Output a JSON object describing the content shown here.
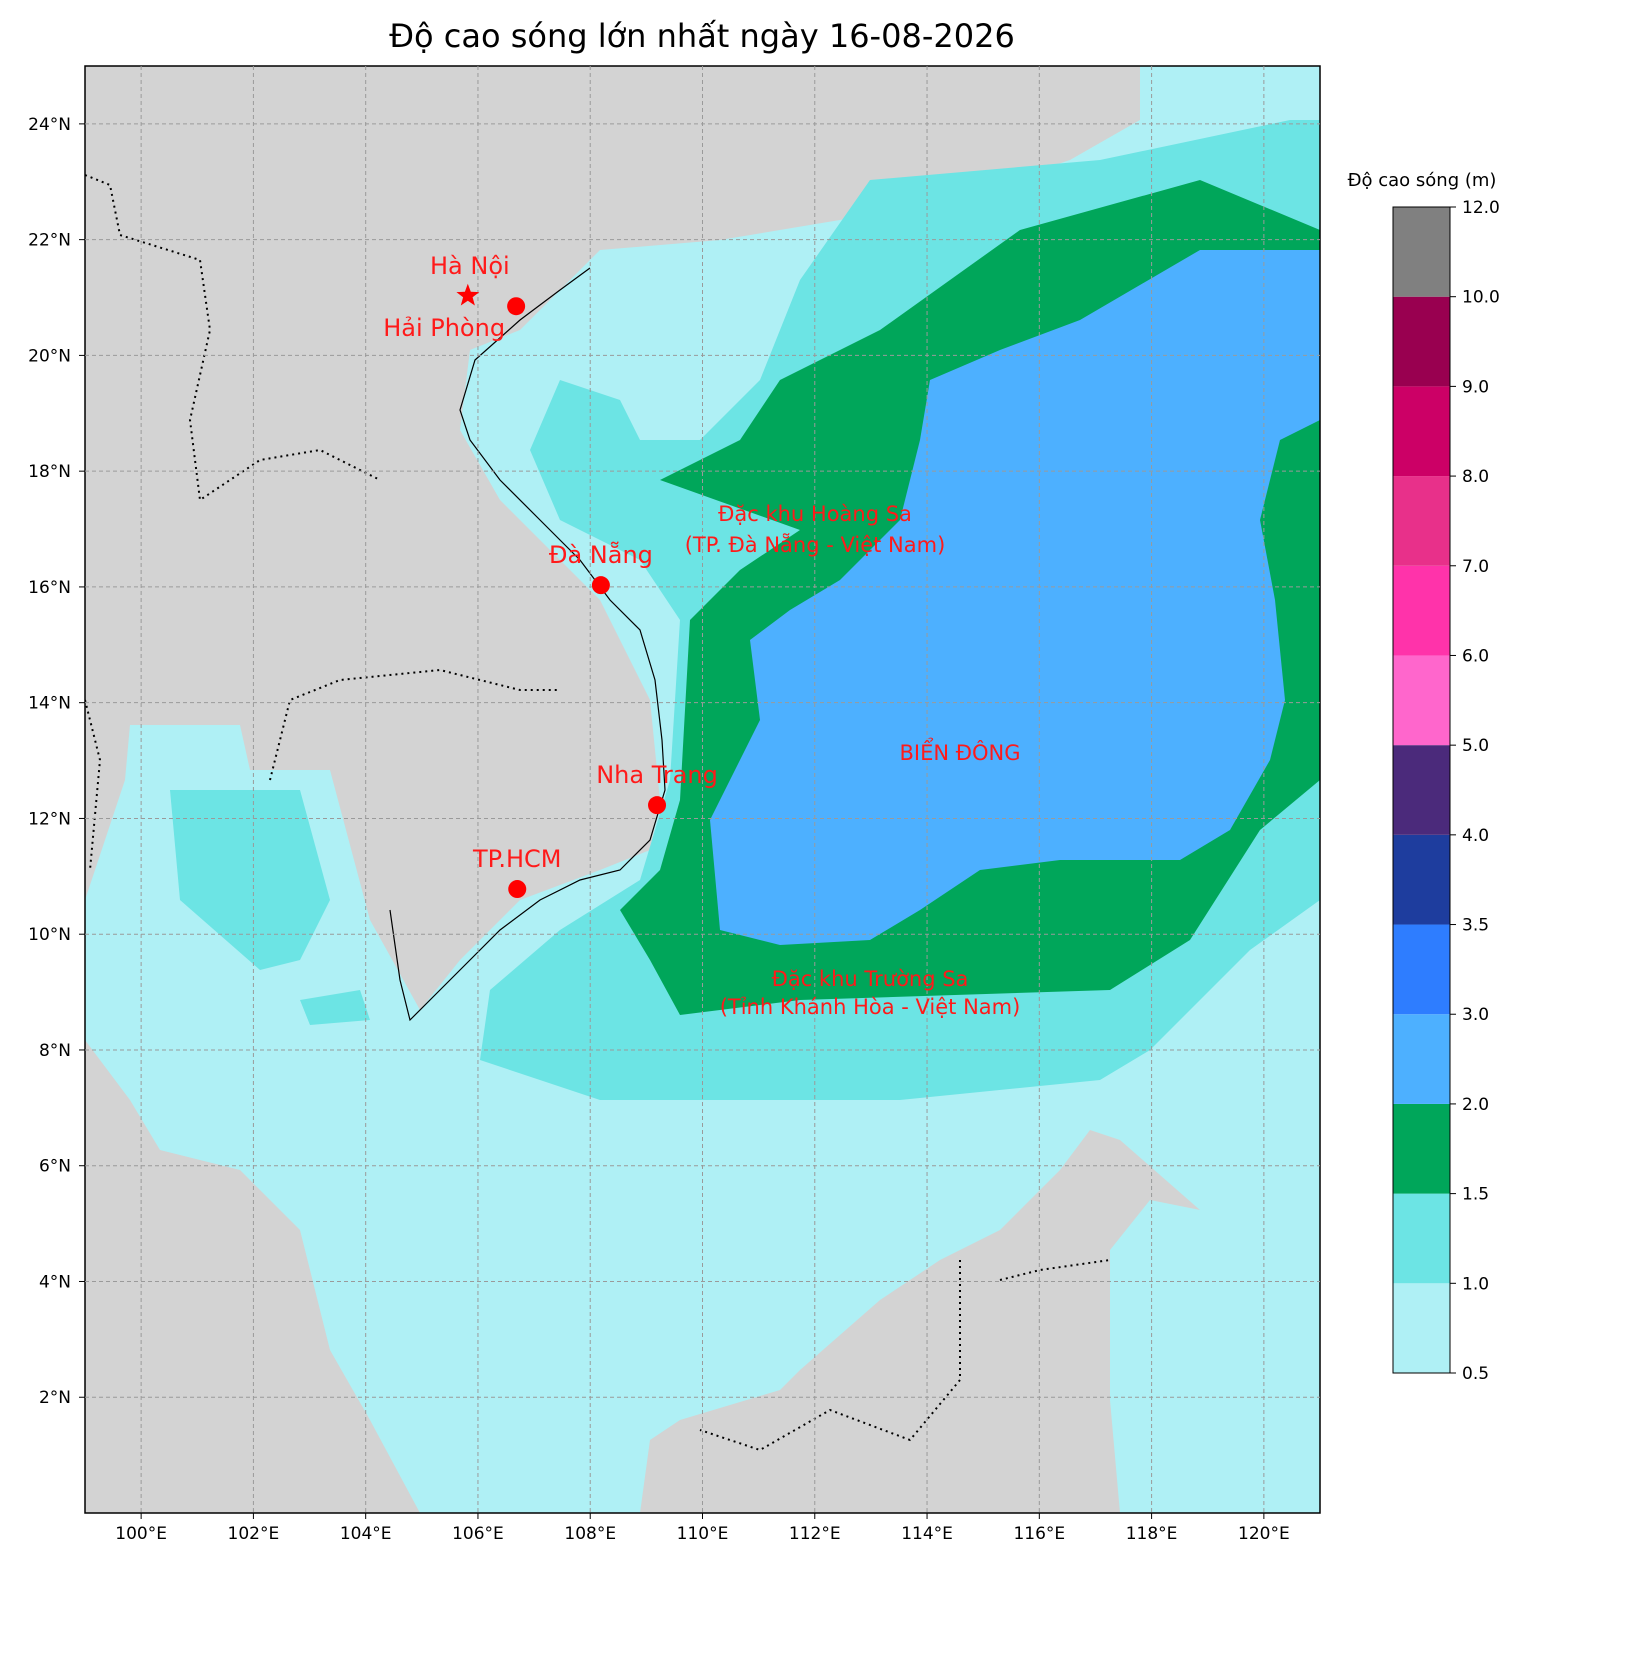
{
  "title": "Độ cao sóng lớn nhất ngày 16-08-2026",
  "map": {
    "xlim": [
      99,
      121
    ],
    "ylim": [
      0,
      25
    ],
    "grid": true,
    "xticks": [
      {
        "value": 100,
        "label": "100°E"
      },
      {
        "value": 102,
        "label": "102°E"
      },
      {
        "value": 104,
        "label": "104°E"
      },
      {
        "value": 106,
        "label": "106°E"
      },
      {
        "value": 108,
        "label": "108°E"
      },
      {
        "value": 110,
        "label": "110°E"
      },
      {
        "value": 112,
        "label": "112°E"
      },
      {
        "value": 114,
        "label": "114°E"
      },
      {
        "value": 116,
        "label": "116°E"
      },
      {
        "value": 118,
        "label": "118°E"
      },
      {
        "value": 120,
        "label": "120°E"
      }
    ],
    "yticks": [
      {
        "value": 2,
        "label": "2°N"
      },
      {
        "value": 4,
        "label": "4°N"
      },
      {
        "value": 6,
        "label": "6°N"
      },
      {
        "value": 8,
        "label": "8°N"
      },
      {
        "value": 10,
        "label": "10°N"
      },
      {
        "value": 12,
        "label": "12°N"
      },
      {
        "value": 14,
        "label": "14°N"
      },
      {
        "value": 16,
        "label": "16°N"
      },
      {
        "value": 18,
        "label": "18°N"
      },
      {
        "value": 20,
        "label": "20°N"
      },
      {
        "value": 22,
        "label": "22°N"
      },
      {
        "value": 24,
        "label": "24°N"
      }
    ],
    "cities": [
      {
        "name": "Hà Nội",
        "lon": 105.82,
        "lat": 21.03,
        "marker": "star"
      },
      {
        "name": "Hải Phòng",
        "lon": 106.68,
        "lat": 20.85,
        "marker": "circle"
      },
      {
        "name": "Đà Nẵng",
        "lon": 108.19,
        "lat": 16.03,
        "marker": "circle"
      },
      {
        "name": "Nha Trang",
        "lon": 109.19,
        "lat": 12.23,
        "marker": "circle"
      },
      {
        "name": "TP.HCM",
        "lon": 106.7,
        "lat": 10.78,
        "marker": "circle"
      }
    ],
    "marker_color": "#ff0000",
    "annotations": [
      "Đặc khu Hoàng Sa",
      "(TP. Đà Nẵng - Việt Nam)",
      "BIỂN ĐÔNG",
      "Đặc khu Trường Sa",
      "(Tỉnh Khánh Hòa - Việt Nam)"
    ]
  },
  "colorbar": {
    "label": "Độ cao sóng (m)",
    "levels": [
      0.5,
      {
        "value": 1,
        "label": "1.0"
      },
      1.5,
      {
        "value": 2,
        "label": "2.0"
      },
      {
        "value": 3,
        "label": "3.0"
      },
      3.5,
      {
        "value": 4,
        "label": "4.0"
      },
      {
        "value": 5,
        "label": "5.0"
      },
      {
        "value": 6,
        "label": "6.0"
      },
      {
        "value": 7,
        "label": "7.0"
      },
      {
        "value": 8,
        "label": "8.0"
      },
      {
        "value": 9,
        "label": "9.0"
      },
      {
        "value": 10,
        "label": "10.0"
      },
      {
        "value": 12,
        "label": "12.0"
      }
    ],
    "colors": [
      "#aff0f5",
      "#6ce4e4",
      "#00a65a",
      "#4db0ff",
      "#2e7dff",
      "#1e3d9e",
      "#4b2a7b",
      "#ff66cc",
      "#ff33aa",
      "#e8308a",
      "#cc0066",
      "#990050",
      "#808080"
    ]
  }
}
